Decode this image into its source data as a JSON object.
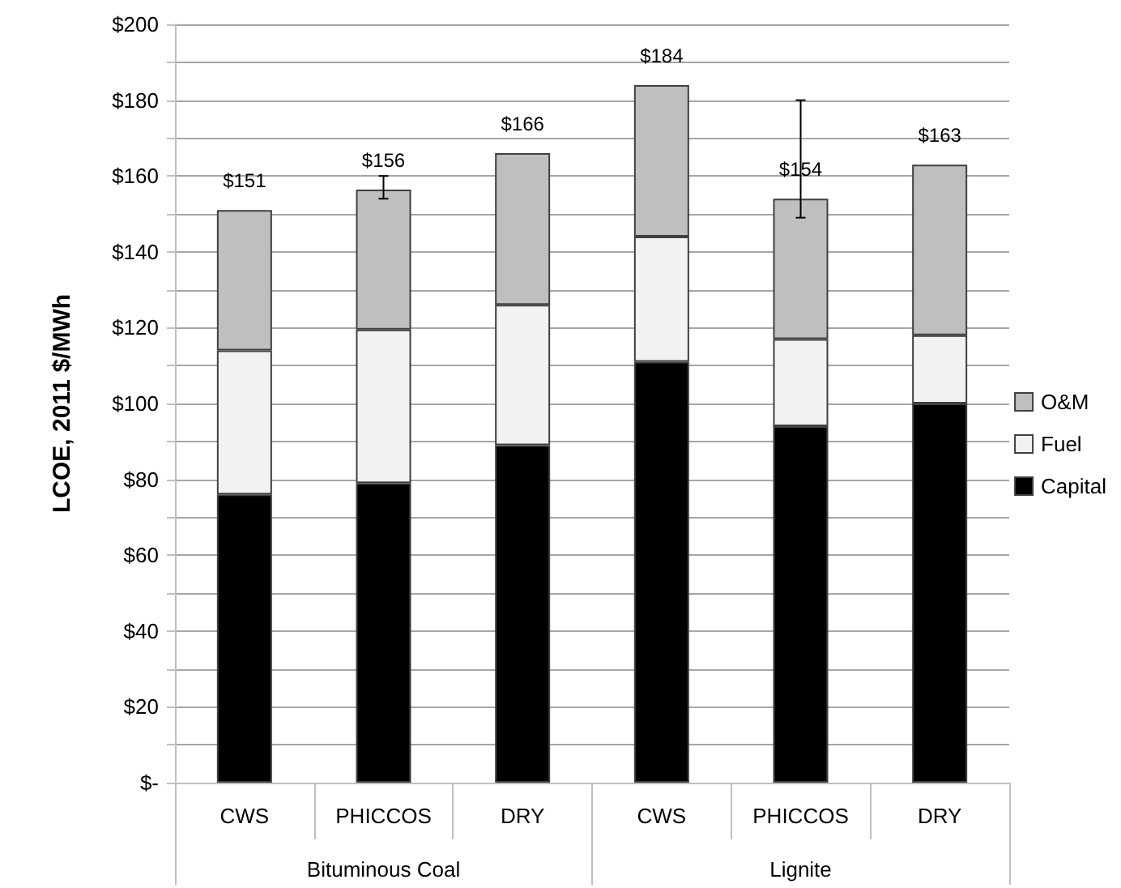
{
  "chart_data": {
    "type": "bar",
    "ylabel": "LCOE, 2011 $/MWh",
    "categories": [
      "CWS",
      "PHICCOS",
      "DRY",
      "CWS",
      "PHICCOS",
      "DRY"
    ],
    "annotations": [
      "Bituminous Coal",
      "Lignite"
    ],
    "stacked": true,
    "series": [
      {
        "name": "Capital",
        "color": "#000000",
        "values": [
          76,
          79,
          89,
          111,
          94,
          100
        ]
      },
      {
        "name": "Fuel",
        "color": "#f2f2f2",
        "values": [
          38,
          40.5,
          37,
          33,
          23,
          18
        ]
      },
      {
        "name": "O&M",
        "color": "#bfbfbf",
        "values": [
          37,
          36.9,
          40,
          40,
          37,
          45
        ],
        "errors": [
          null,
          [
            154,
            160
          ],
          null,
          null,
          [
            149,
            180
          ],
          null
        ]
      }
    ],
    "totals": [
      "$151",
      "$156",
      "$166",
      "$184",
      "$154",
      "$163"
    ],
    "ylim": [
      0,
      200
    ],
    "yticks": [
      {
        "value": 0,
        "label": "$-"
      },
      {
        "value": 10,
        "label": null
      },
      {
        "value": 20,
        "label": "$20"
      },
      {
        "value": 30,
        "label": null
      },
      {
        "value": 40,
        "label": "$40"
      },
      {
        "value": 50,
        "label": null
      },
      {
        "value": 60,
        "label": "$60"
      },
      {
        "value": 70,
        "label": null
      },
      {
        "value": 80,
        "label": "$80"
      },
      {
        "value": 90,
        "label": null
      },
      {
        "value": 100,
        "label": "$100"
      },
      {
        "value": 110,
        "label": null
      },
      {
        "value": 120,
        "label": "$120"
      },
      {
        "value": 130,
        "label": null
      },
      {
        "value": 140,
        "label": "$140"
      },
      {
        "value": 150,
        "label": null
      },
      {
        "value": 160,
        "label": "$160"
      },
      {
        "value": 170,
        "label": null
      },
      {
        "value": 180,
        "label": "$180"
      },
      {
        "value": 190,
        "label": null
      },
      {
        "value": 200,
        "label": "$200"
      }
    ],
    "grid": "y",
    "legend": "right"
  }
}
